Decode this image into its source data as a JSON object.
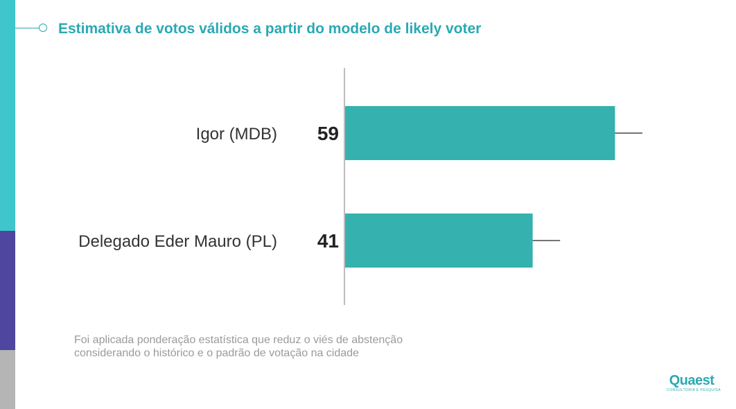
{
  "title": "Estimativa de votos válidos a partir do modelo de likely voter",
  "note": {
    "line1": "Foi aplicada ponderação estatística que reduz o viés de abstenção",
    "line2": "considerando o histórico e o padrão de votação na cidade"
  },
  "logo": {
    "name": "Quaest",
    "tagline": "CONSULTORIA E PESQUISA"
  },
  "colors": {
    "bar": "#35b1b0",
    "accent": "#2aa9b3"
  },
  "chart_data": {
    "type": "bar",
    "orientation": "horizontal",
    "title": "Estimativa de votos válidos a partir do modelo de likely voter",
    "categories": [
      "Igor (MDB)",
      "Delegado Eder Mauro (PL)"
    ],
    "values": [
      59,
      41
    ],
    "error_bar_center": [
      62,
      44
    ],
    "error_bar_half_width": [
      3,
      3
    ],
    "xlim": [
      0,
      65
    ],
    "xlabel": "",
    "ylabel": "",
    "grid": false,
    "legend": "none"
  }
}
